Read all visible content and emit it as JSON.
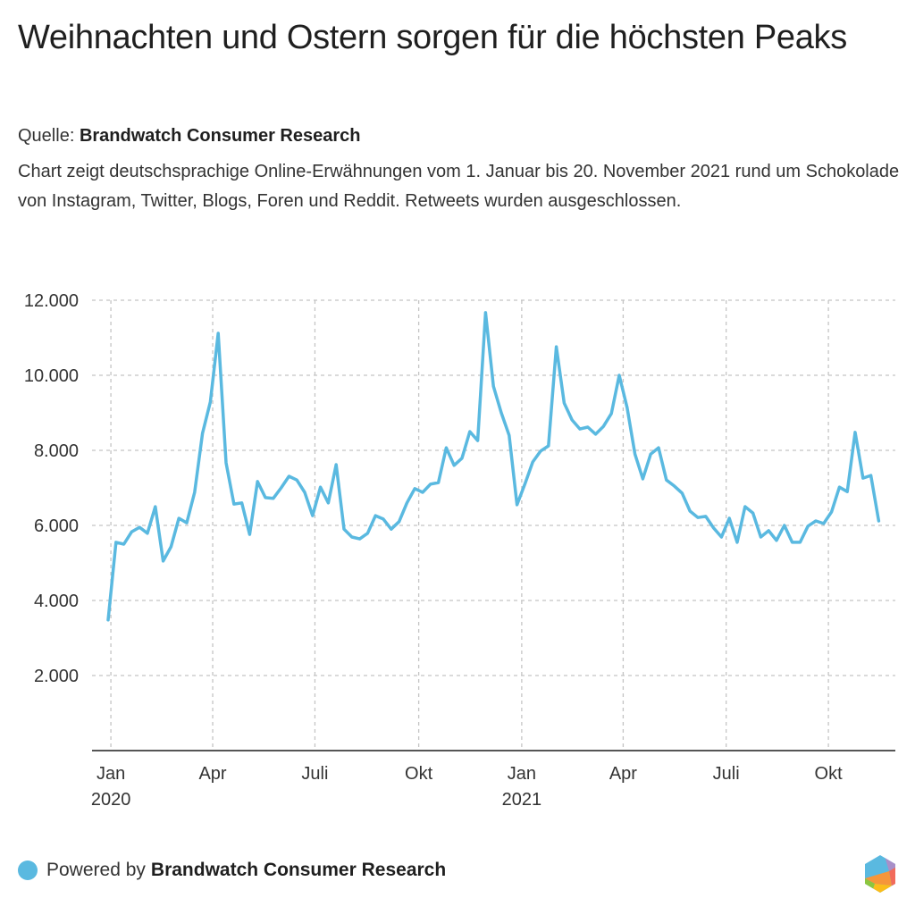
{
  "header": {
    "title": "Weihnachten und Ostern sorgen für die höchsten Peaks",
    "source_label": "Quelle:",
    "source_name": "Brandwatch Consumer Research",
    "description": "Chart zeigt deutschsprachige Online-Erwähnungen vom 1. Januar bis 20. November 2021 rund um Schokolade von Instagram, Twitter, Blogs, Foren und Reddit. Retweets wurden ausgeschlossen."
  },
  "footer": {
    "powered_label": "Powered by",
    "brand": "Brandwatch Consumer Research",
    "legend_color": "#5ab9e0",
    "logo_icon": "brandwatch-hexagon-logo-icon"
  },
  "chart_data": {
    "type": "line",
    "title": "Weihnachten und Ostern sorgen für die höchsten Peaks",
    "xlabel": "",
    "ylabel": "",
    "ylim": [
      0,
      12000
    ],
    "yticks": [
      2000,
      4000,
      6000,
      8000,
      10000,
      12000
    ],
    "ytick_labels": [
      "2.000",
      "4.000",
      "6.000",
      "8.000",
      "10.000",
      "12.000"
    ],
    "x_unit": "weeks since start (weekly data, ~Jan 2020 to Nov 2021)",
    "xticks": [
      {
        "label": "Jan",
        "sublabel": "2020",
        "week": 0.35
      },
      {
        "label": "Apr",
        "sublabel": "",
        "week": 13.3
      },
      {
        "label": "Juli",
        "sublabel": "",
        "week": 26.3
      },
      {
        "label": "Okt",
        "sublabel": "",
        "week": 39.5
      },
      {
        "label": "Jan",
        "sublabel": "2021",
        "week": 52.6
      },
      {
        "label": "Apr",
        "sublabel": "",
        "week": 65.5
      },
      {
        "label": "Juli",
        "sublabel": "",
        "week": 78.6
      },
      {
        "label": "Okt",
        "sublabel": "",
        "week": 91.6
      }
    ],
    "grid": true,
    "legend": "none",
    "series": [
      {
        "name": "Online-Erwähnungen Schokolade",
        "color": "#5ab9e0",
        "values": [
          3480,
          5550,
          5500,
          5830,
          5950,
          5790,
          6500,
          5050,
          5430,
          6190,
          6070,
          6880,
          8450,
          9290,
          11120,
          7670,
          6570,
          6600,
          5760,
          7170,
          6740,
          6720,
          7000,
          7310,
          7210,
          6880,
          6260,
          7020,
          6600,
          7620,
          5900,
          5690,
          5640,
          5790,
          6260,
          6170,
          5900,
          6100,
          6600,
          6980,
          6880,
          7100,
          7140,
          8070,
          7600,
          7790,
          8500,
          8260,
          11670,
          9710,
          9000,
          8400,
          6550,
          7100,
          7690,
          7980,
          8120,
          10760,
          9260,
          8810,
          8570,
          8620,
          8430,
          8640,
          8980,
          10000,
          9140,
          7900,
          7240,
          7900,
          8070,
          7210,
          7050,
          6860,
          6380,
          6210,
          6240,
          5930,
          5690,
          6190,
          5550,
          6500,
          6330,
          5690,
          5860,
          5600,
          6000,
          5550,
          5550,
          5980,
          6120,
          6050,
          6360,
          7020,
          6900,
          8480,
          7260,
          7330,
          6120
        ]
      }
    ]
  }
}
